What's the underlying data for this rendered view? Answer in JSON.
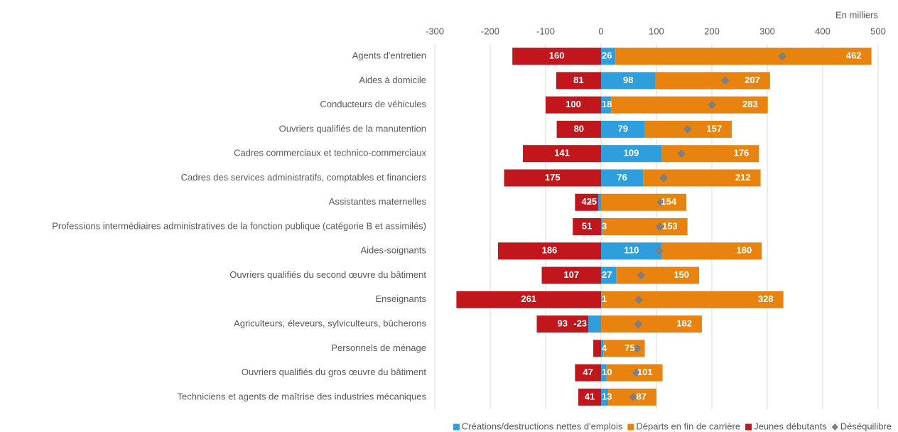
{
  "chart_data": {
    "type": "bar",
    "orientation": "horizontal",
    "annotation": "En milliers",
    "categories": [
      "Agents d'entretien",
      "Aides à domicile",
      "Conducteurs de véhicules",
      "Ouvriers qualifiés de la manutention",
      "Cadres commerciaux et technico-commerciaux",
      "Cadres des services administratifs, comptables et financiers",
      "Assistantes maternelles",
      "Professions intermédiaires administratives de la fonction publique (catégorie B et assimilés)",
      "Aides-soignants",
      "Ouvriers qualifiés du second œuvre du bâtiment",
      "Enseignants",
      "Agriculteurs, éleveurs, sylviculteurs, bûcherons",
      "Personnels de ménage",
      "Ouvriers qualifiés du gros œuvre du bâtiment",
      "Techniciens et agents de maîtrise des industries mécaniques"
    ],
    "series": [
      {
        "name": "Créations/destructions nettes d'emplois",
        "color": "#2e9fdc",
        "values": [
          26,
          98,
          18,
          79,
          109,
          76,
          -5,
          3,
          110,
          27,
          1,
          -23,
          4,
          10,
          13
        ]
      },
      {
        "name": "Départs en fin de carrière",
        "color": "#e9830f",
        "values": [
          462,
          207,
          283,
          157,
          176,
          212,
          154,
          153,
          180,
          150,
          328,
          182,
          75,
          101,
          87
        ]
      },
      {
        "name": "Jeunes débutants",
        "color": "#c0161c",
        "values": [
          -160,
          -81,
          -100,
          -80,
          -141,
          -175,
          -42,
          -51,
          -186,
          -107,
          -261,
          -93,
          -14,
          -47,
          -41
        ],
        "value_labels": [
          "160",
          "81",
          "100",
          "80",
          "141",
          "175",
          "42",
          "51",
          "186",
          "107",
          "261",
          "93",
          null,
          "47",
          "41"
        ]
      },
      {
        "name": "Déséquilibre",
        "color": "#7f7f7f",
        "marker": "diamond",
        "values": [
          327,
          224,
          200,
          156,
          145,
          113,
          108,
          106,
          105,
          72,
          68,
          67,
          65,
          64,
          58
        ]
      }
    ],
    "xlim": [
      -300,
      500
    ],
    "xticks": [
      -300,
      -200,
      -100,
      0,
      100,
      200,
      300,
      400,
      500
    ],
    "grid": true
  }
}
